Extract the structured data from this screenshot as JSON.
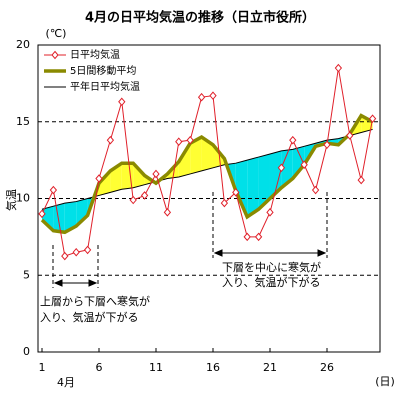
{
  "chart_data": {
    "type": "line",
    "title": "4月の日平均気温の推移（日立市役所）",
    "y_label": "気温",
    "y_unit": "(℃)",
    "x_unit": "(日)",
    "month_label": "4月",
    "x": [
      1,
      2,
      3,
      4,
      5,
      6,
      7,
      8,
      9,
      10,
      11,
      12,
      13,
      14,
      15,
      16,
      17,
      18,
      19,
      20,
      21,
      22,
      23,
      24,
      25,
      26,
      27,
      28,
      29,
      30
    ],
    "series": [
      {
        "name": "日平均気温",
        "color": "#e0202a",
        "values": [
          9.0,
          10.55,
          6.25,
          6.5,
          6.65,
          11.3,
          13.8,
          16.3,
          9.9,
          10.2,
          11.6,
          9.1,
          13.7,
          13.8,
          16.6,
          16.7,
          9.7,
          10.4,
          7.5,
          7.5,
          9.1,
          12.0,
          13.8,
          12.2,
          10.55,
          13.5,
          18.5,
          14.1,
          11.2,
          15.2
        ]
      },
      {
        "name": "5日間移動平均",
        "color": "#8a8a00",
        "values": [
          8.6,
          7.9,
          7.8,
          8.2,
          8.9,
          11.0,
          11.8,
          12.3,
          12.3,
          11.5,
          11.0,
          11.6,
          12.4,
          13.6,
          14.0,
          13.5,
          12.6,
          10.5,
          8.8,
          9.3,
          10.0,
          10.7,
          11.3,
          12.2,
          13.4,
          13.6,
          13.5,
          14.2,
          15.4,
          15.0
        ]
      },
      {
        "name": "平年日平均気温",
        "color": "#000000",
        "values": [
          9.3,
          9.5,
          9.7,
          9.8,
          10.0,
          10.2,
          10.4,
          10.6,
          10.7,
          10.9,
          11.1,
          11.3,
          11.4,
          11.6,
          11.8,
          12.0,
          12.2,
          12.3,
          12.5,
          12.7,
          12.9,
          13.1,
          13.2,
          13.4,
          13.6,
          13.8,
          13.9,
          14.1,
          14.3,
          14.5
        ]
      }
    ],
    "above_color": "#ffff33",
    "below_color": "#00e0e8",
    "xlim": [
      0.65,
      30.65
    ],
    "xticks": [
      1,
      6,
      11,
      16,
      21,
      26
    ],
    "ylim": [
      0,
      20
    ],
    "yticks": [
      0,
      5,
      10,
      15,
      20
    ],
    "grid": true,
    "annotations": [
      {
        "lines": [
          "上層から下層へ寒気が",
          "入り、気温が下がる"
        ]
      },
      {
        "lines": [
          "下層を中心に寒気が",
          "入り、気温が下がる"
        ]
      }
    ]
  }
}
